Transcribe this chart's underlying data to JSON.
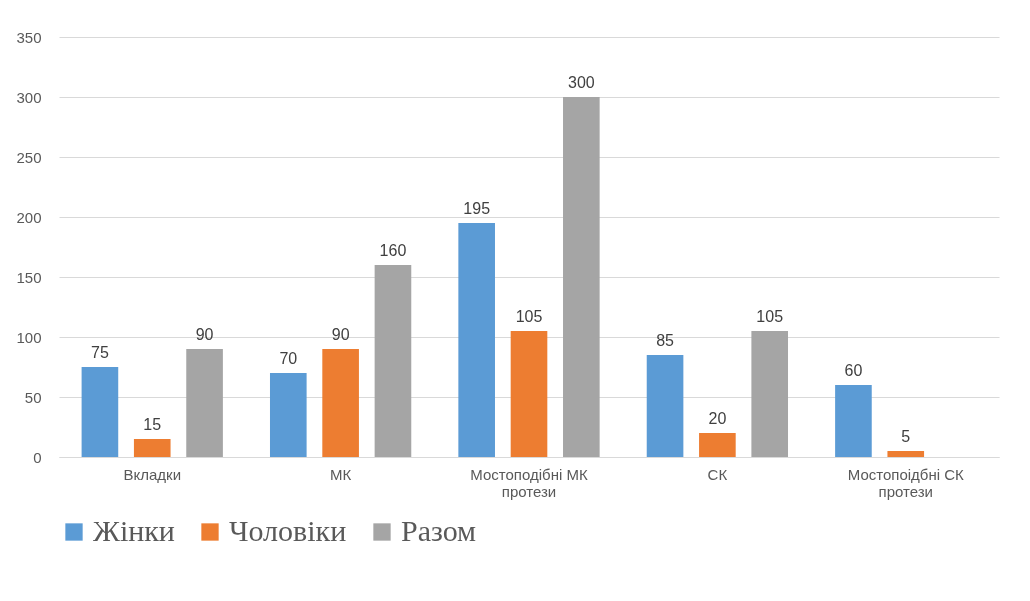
{
  "chart_data": {
    "type": "bar",
    "categories": [
      "Вкладки",
      "МК",
      "Мостоподібні МК протези",
      "СК",
      "Мостопоідбні СК протези"
    ],
    "series": [
      {
        "name": "Жінки",
        "color": "#5b9bd5",
        "values": [
          75,
          70,
          195,
          85,
          60
        ]
      },
      {
        "name": "Чоловіки",
        "color": "#ed7d31",
        "values": [
          15,
          90,
          105,
          20,
          5
        ]
      },
      {
        "name": "Разом",
        "color": "#a5a5a5",
        "values": [
          90,
          160,
          300,
          105,
          null
        ]
      }
    ],
    "ylim": [
      0,
      350
    ],
    "yticks": [
      0,
      50,
      100,
      150,
      200,
      250,
      300,
      350
    ],
    "grid": "y",
    "legend": "bottom",
    "data_labels": true
  }
}
